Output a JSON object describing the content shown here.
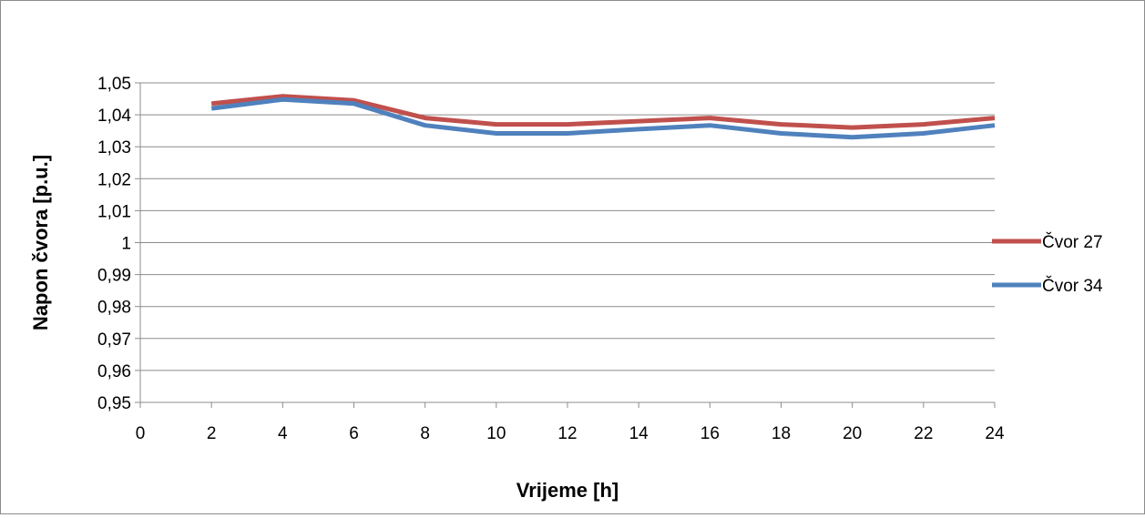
{
  "chart_data": {
    "type": "line",
    "xlabel": "Vrijeme [h]",
    "ylabel": "Napon čvora [p.u.]",
    "xlim": [
      0,
      24
    ],
    "ylim": [
      0.95,
      1.05
    ],
    "x_ticks": [
      "0",
      "2",
      "4",
      "6",
      "8",
      "10",
      "12",
      "14",
      "16",
      "18",
      "20",
      "22",
      "24"
    ],
    "y_ticks": [
      "0,95",
      "0,96",
      "0,97",
      "0,98",
      "0,99",
      "1",
      "1,01",
      "1,02",
      "1,03",
      "1,04",
      "1,05"
    ],
    "x": [
      2,
      4,
      6,
      8,
      10,
      12,
      14,
      16,
      18,
      20,
      22,
      24
    ],
    "series": [
      {
        "name": "Čvor 27",
        "color": "#c0504d",
        "values": [
          1.0435,
          1.0458,
          1.0445,
          1.039,
          1.037,
          1.037,
          1.038,
          1.039,
          1.037,
          1.036,
          1.037,
          1.039
        ]
      },
      {
        "name": "Čvor 34",
        "color": "#4f81bd",
        "values": [
          1.042,
          1.0448,
          1.0435,
          1.0367,
          1.0342,
          1.0342,
          1.0355,
          1.0367,
          1.0342,
          1.033,
          1.0342,
          1.0367
        ]
      }
    ],
    "grid": true,
    "legend_position": "right",
    "gridline_color": "#8c8c8c",
    "axis_color": "#8c8c8c"
  }
}
